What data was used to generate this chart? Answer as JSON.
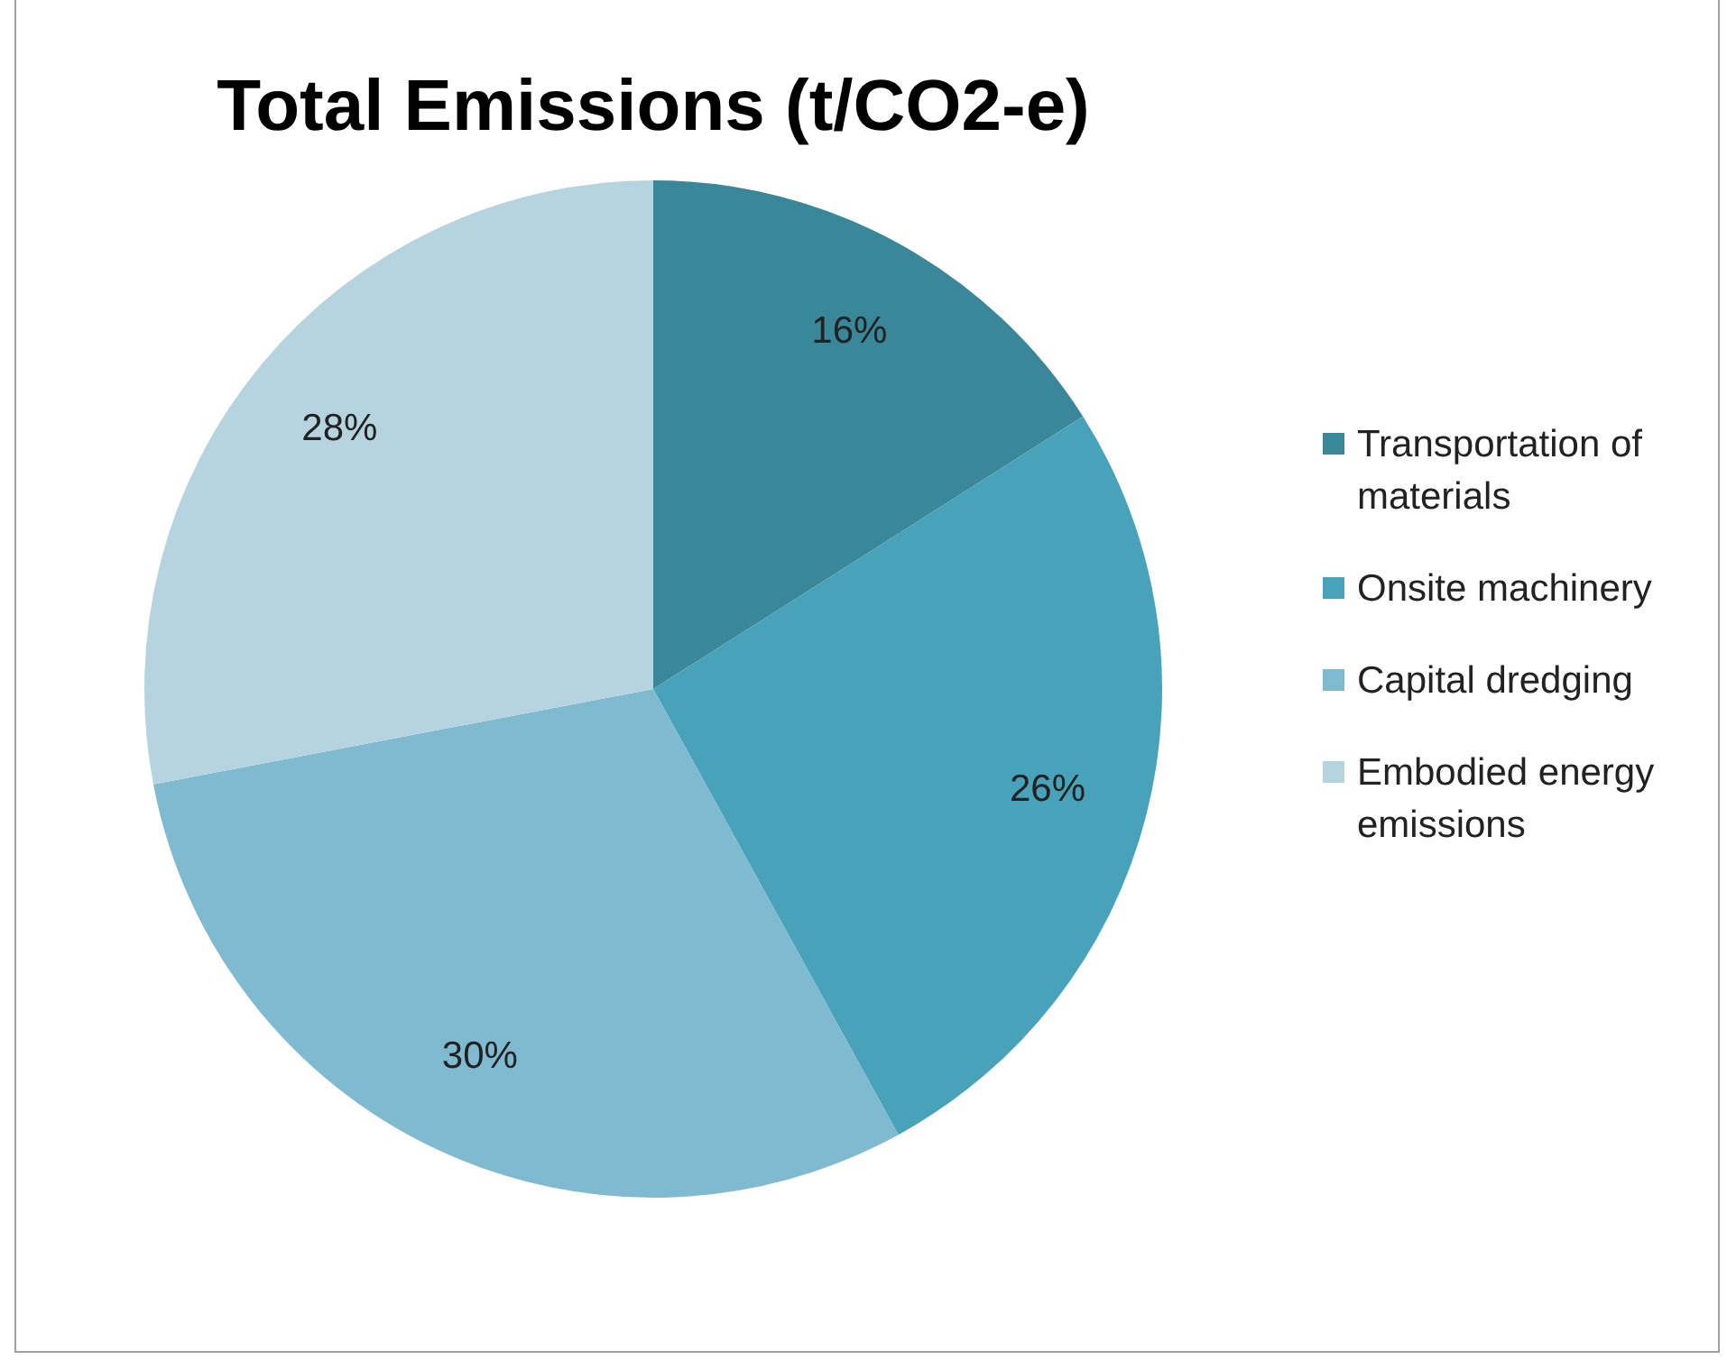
{
  "chart_data": {
    "type": "pie",
    "title": "Total Emissions (t/CO2-e)",
    "categories": [
      "Transportation of materials",
      "Onsite machinery",
      "Capital dredging",
      "Embodied energy emissions"
    ],
    "values": [
      16,
      26,
      30,
      28
    ],
    "value_labels": [
      "16%",
      "26%",
      "30%",
      "28%"
    ],
    "colors": [
      "#3a8799",
      "#48a2b9",
      "#7fbad0",
      "#b6d4df"
    ],
    "legend": "right"
  }
}
